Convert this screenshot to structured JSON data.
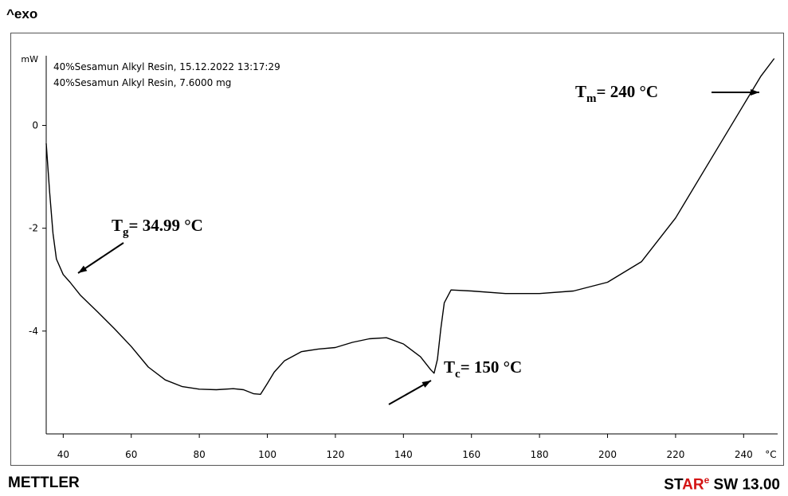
{
  "header": {
    "exo_label": "^exo"
  },
  "info_lines": [
    "40%Sesamun Alkyl Resin, 15.12.2022 13:17:29",
    "40%Sesamun Alkyl Resin, 7.6000 mg"
  ],
  "footer": {
    "brand": "METTLER",
    "software_st": "ST",
    "software_ar": "AR",
    "software_e": "e",
    "software_rest": " SW 13.00"
  },
  "colors": {
    "accent": "#d41414",
    "line": "#000000",
    "frame": "#555555"
  },
  "chart_data": {
    "type": "line",
    "title": "",
    "xlabel": "",
    "ylabel": "",
    "y_unit": "mW",
    "x_unit": "°C",
    "xlim": [
      35,
      250
    ],
    "ylim": [
      -6,
      1.2
    ],
    "x_ticks": [
      40,
      60,
      80,
      100,
      120,
      140,
      160,
      180,
      200,
      220,
      240
    ],
    "y_ticks": [
      0,
      -2,
      -4
    ],
    "grid": false,
    "series": [
      {
        "points": [
          [
            35,
            -0.35
          ],
          [
            36,
            -1.3
          ],
          [
            37,
            -2.1
          ],
          [
            38,
            -2.6
          ],
          [
            40,
            -2.9
          ],
          [
            42,
            -3.05
          ],
          [
            45,
            -3.3
          ],
          [
            50,
            -3.62
          ],
          [
            55,
            -3.95
          ],
          [
            60,
            -4.3
          ],
          [
            65,
            -4.7
          ],
          [
            70,
            -4.95
          ],
          [
            75,
            -5.08
          ],
          [
            80,
            -5.13
          ],
          [
            85,
            -5.14
          ],
          [
            90,
            -5.12
          ],
          [
            93,
            -5.14
          ],
          [
            96,
            -5.22
          ],
          [
            98,
            -5.23
          ],
          [
            100,
            -5.02
          ],
          [
            102,
            -4.8
          ],
          [
            105,
            -4.58
          ],
          [
            110,
            -4.4
          ],
          [
            115,
            -4.35
          ],
          [
            120,
            -4.32
          ],
          [
            125,
            -4.22
          ],
          [
            130,
            -4.15
          ],
          [
            135,
            -4.13
          ],
          [
            140,
            -4.25
          ],
          [
            145,
            -4.5
          ],
          [
            148,
            -4.75
          ],
          [
            149,
            -4.82
          ],
          [
            150,
            -4.55
          ],
          [
            151,
            -3.95
          ],
          [
            152,
            -3.45
          ],
          [
            154,
            -3.2
          ],
          [
            160,
            -3.22
          ],
          [
            170,
            -3.27
          ],
          [
            180,
            -3.27
          ],
          [
            190,
            -3.22
          ],
          [
            200,
            -3.05
          ],
          [
            210,
            -2.65
          ],
          [
            220,
            -1.8
          ],
          [
            230,
            -0.7
          ],
          [
            240,
            0.4
          ],
          [
            245,
            0.95
          ],
          [
            249,
            1.3
          ]
        ]
      }
    ],
    "annotations": [
      {
        "main": "T",
        "sub": "g",
        "rest": "= 34.99 °C",
        "x": 44,
        "y": -3.0
      },
      {
        "main": "T",
        "sub": "c",
        "rest": "= 150 °C",
        "x": 149,
        "y": -4.8
      },
      {
        "main": "T",
        "sub": "m",
        "rest": "= 240 °C",
        "x": 249,
        "y": 1.3
      }
    ]
  }
}
